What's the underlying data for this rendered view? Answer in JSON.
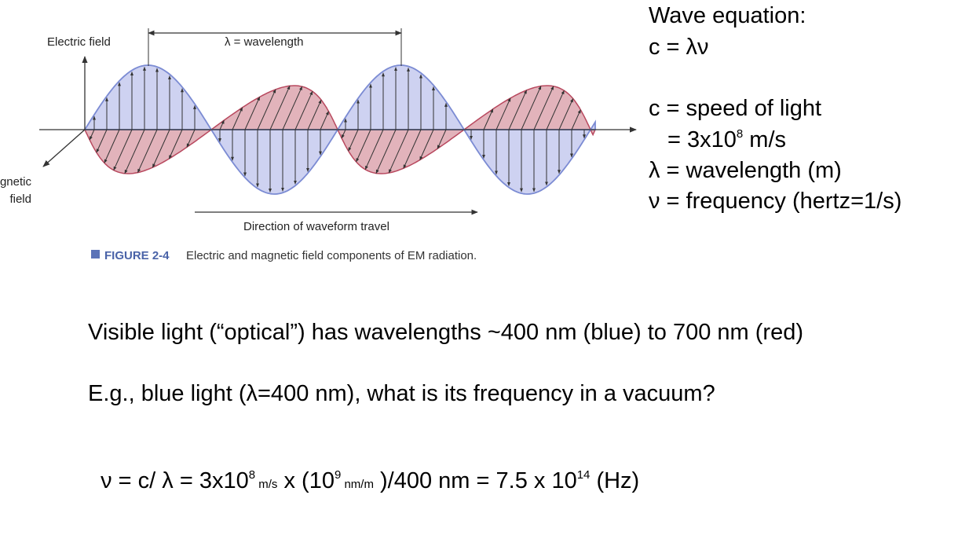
{
  "figure": {
    "electric_label": "Electric field",
    "wavelength_label": "λ = wavelength",
    "magnetic_label": [
      "Magnetic",
      "field"
    ],
    "direction_label": "Direction of waveform travel",
    "caption_number": "FIGURE 2-4",
    "caption_text": "Electric and magnetic field components of EM radiation."
  },
  "equations": {
    "title": "Wave equation:",
    "formula": "c = λν",
    "c_def": "c = speed of light",
    "c_value": [
      "= 3x10",
      "8",
      " m/s"
    ],
    "lambda_def": "λ = wavelength (m)",
    "nu_def": "ν = frequency (hertz=1/s)"
  },
  "body": {
    "line1": "Visible light (“optical”) has wavelengths ~400 nm (blue) to 700 nm (red)",
    "line2": "E.g., blue light (λ=400 nm), what is its frequency in a vacuum?",
    "line3": [
      "ν = c/ λ = 3x10",
      "8",
      " m/s",
      " x (10",
      "9",
      " nm/m",
      " )/400 nm = 7.5 x 10",
      "14",
      " (Hz)"
    ]
  }
}
